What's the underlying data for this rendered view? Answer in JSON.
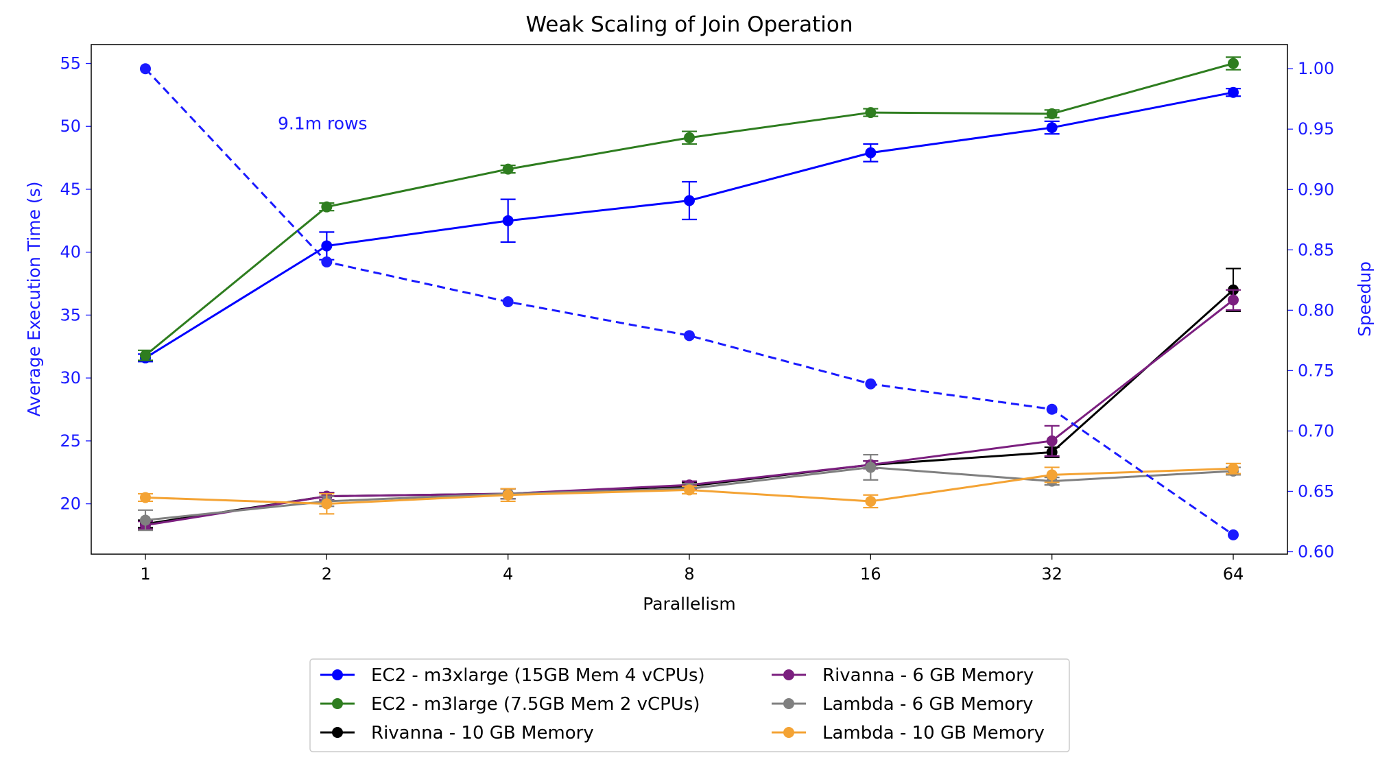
{
  "chart_data": {
    "type": "line",
    "title": "Weak Scaling of Join Operation",
    "xlabel": "Parallelism",
    "ylabel": "Average Execution Time (s)",
    "ylabel_right": "Speedup",
    "annotation": "9.1m rows",
    "categories": [
      "1",
      "2",
      "4",
      "8",
      "16",
      "32",
      "64"
    ],
    "ylim": [
      16,
      56.5
    ],
    "yticks": [
      20,
      25,
      30,
      35,
      40,
      45,
      50,
      55
    ],
    "ylim_right": [
      0.598,
      1.02
    ],
    "yticks_right": [
      0.6,
      0.65,
      0.7,
      0.75,
      0.8,
      0.85,
      0.9,
      0.95,
      1.0
    ],
    "yticks_right_labels": [
      "0.60",
      "0.65",
      "0.70",
      "0.75",
      "0.80",
      "0.85",
      "0.90",
      "0.95",
      "1.00"
    ],
    "left_axis_color": "#1a1aff",
    "right_axis_color": "#1a1aff",
    "legend_location": "bottom-center",
    "series": [
      {
        "name": "EC2 - m3xlarge (15GB Mem 4 vCPUs)",
        "color": "#0000ff",
        "axis": "left",
        "style": "solid",
        "values": [
          31.6,
          40.5,
          42.5,
          44.1,
          47.9,
          49.9,
          52.7
        ],
        "errors": [
          0.3,
          1.1,
          1.7,
          1.5,
          0.7,
          0.5,
          0.3
        ]
      },
      {
        "name": "EC2 - m3large (7.5GB Mem 2 vCPUs)",
        "color": "#2e7d1f",
        "axis": "left",
        "style": "solid",
        "values": [
          31.8,
          43.6,
          46.6,
          49.1,
          51.1,
          51.0,
          55.0
        ],
        "errors": [
          0.4,
          0.3,
          0.3,
          0.5,
          0.3,
          0.3,
          0.5
        ]
      },
      {
        "name": "Rivanna - 10 GB Memory",
        "color": "#000000",
        "axis": "left",
        "style": "solid",
        "values": [
          18.4,
          20.6,
          20.8,
          21.4,
          23.1,
          24.1,
          37.0
        ],
        "errors": [
          0.3,
          0.3,
          0.4,
          0.3,
          0.3,
          0.4,
          1.7
        ]
      },
      {
        "name": "Rivanna - 6 GB Memory",
        "color": "#7b1f7f",
        "axis": "left",
        "style": "solid",
        "values": [
          18.3,
          20.6,
          20.8,
          21.5,
          23.1,
          25.0,
          36.2
        ],
        "errors": [
          0.3,
          0.3,
          0.4,
          0.3,
          0.3,
          1.2,
          0.8
        ]
      },
      {
        "name": "Lambda - 6 GB Memory",
        "color": "#808080",
        "axis": "left",
        "style": "solid",
        "values": [
          18.7,
          20.2,
          20.8,
          21.2,
          22.9,
          21.8,
          22.6
        ],
        "errors": [
          0.8,
          0.4,
          0.4,
          0.4,
          1.0,
          0.3,
          0.3
        ]
      },
      {
        "name": "Lambda - 10 GB Memory",
        "color": "#f4a334",
        "axis": "left",
        "style": "solid",
        "values": [
          20.5,
          20.0,
          20.7,
          21.1,
          20.2,
          22.3,
          22.8
        ],
        "errors": [
          0.3,
          0.8,
          0.5,
          0.3,
          0.5,
          0.6,
          0.4
        ]
      },
      {
        "name": "",
        "color": "#1a1aff",
        "axis": "right",
        "style": "dashed",
        "values": [
          1.0,
          0.84,
          0.807,
          0.779,
          0.739,
          0.718,
          0.614
        ],
        "errors": []
      }
    ]
  }
}
